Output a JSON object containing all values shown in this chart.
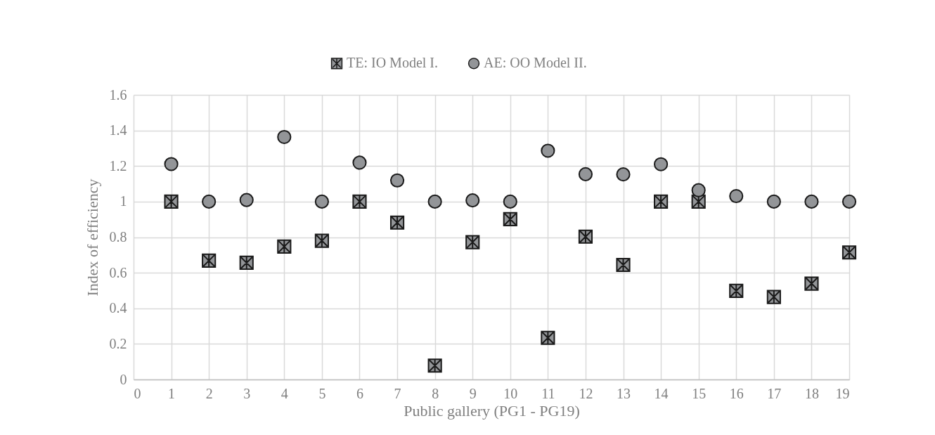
{
  "chart_data": {
    "type": "scatter",
    "xlabel": "Public gallery (PG1 - PG19)",
    "ylabel": "Index of efficiency",
    "x": [
      1,
      2,
      3,
      4,
      5,
      6,
      7,
      8,
      9,
      10,
      11,
      12,
      13,
      14,
      15,
      16,
      17,
      18,
      19
    ],
    "series": [
      {
        "name": "TE: IO Model I.",
        "color": "#939598",
        "marker": "cross",
        "values": [
          1.0,
          0.668,
          0.656,
          0.747,
          0.78,
          1.0,
          0.882,
          0.078,
          0.772,
          0.901,
          0.234,
          0.803,
          0.644,
          1.0,
          1.0,
          0.498,
          0.464,
          0.539,
          0.714
        ]
      },
      {
        "name": "AE: OO Model II.",
        "color": "#939598",
        "marker": "circle",
        "values": [
          1.211,
          1.0,
          1.009,
          1.363,
          1.0,
          1.219,
          1.119,
          1.0,
          1.007,
          1.0,
          1.286,
          1.154,
          1.153,
          1.21,
          1.064,
          1.031,
          1.0,
          1.0,
          1.0
        ]
      }
    ],
    "xlim": [
      0,
      19
    ],
    "xticks": [
      0,
      1,
      2,
      3,
      4,
      5,
      6,
      7,
      8,
      9,
      10,
      11,
      12,
      13,
      14,
      15,
      16,
      17,
      18,
      19
    ],
    "ylim": [
      0,
      1.6
    ],
    "yticks": [
      0,
      0.2,
      0.4,
      0.6,
      0.8,
      1,
      1.2,
      1.4,
      1.6
    ],
    "grid": true,
    "legend": "top"
  }
}
